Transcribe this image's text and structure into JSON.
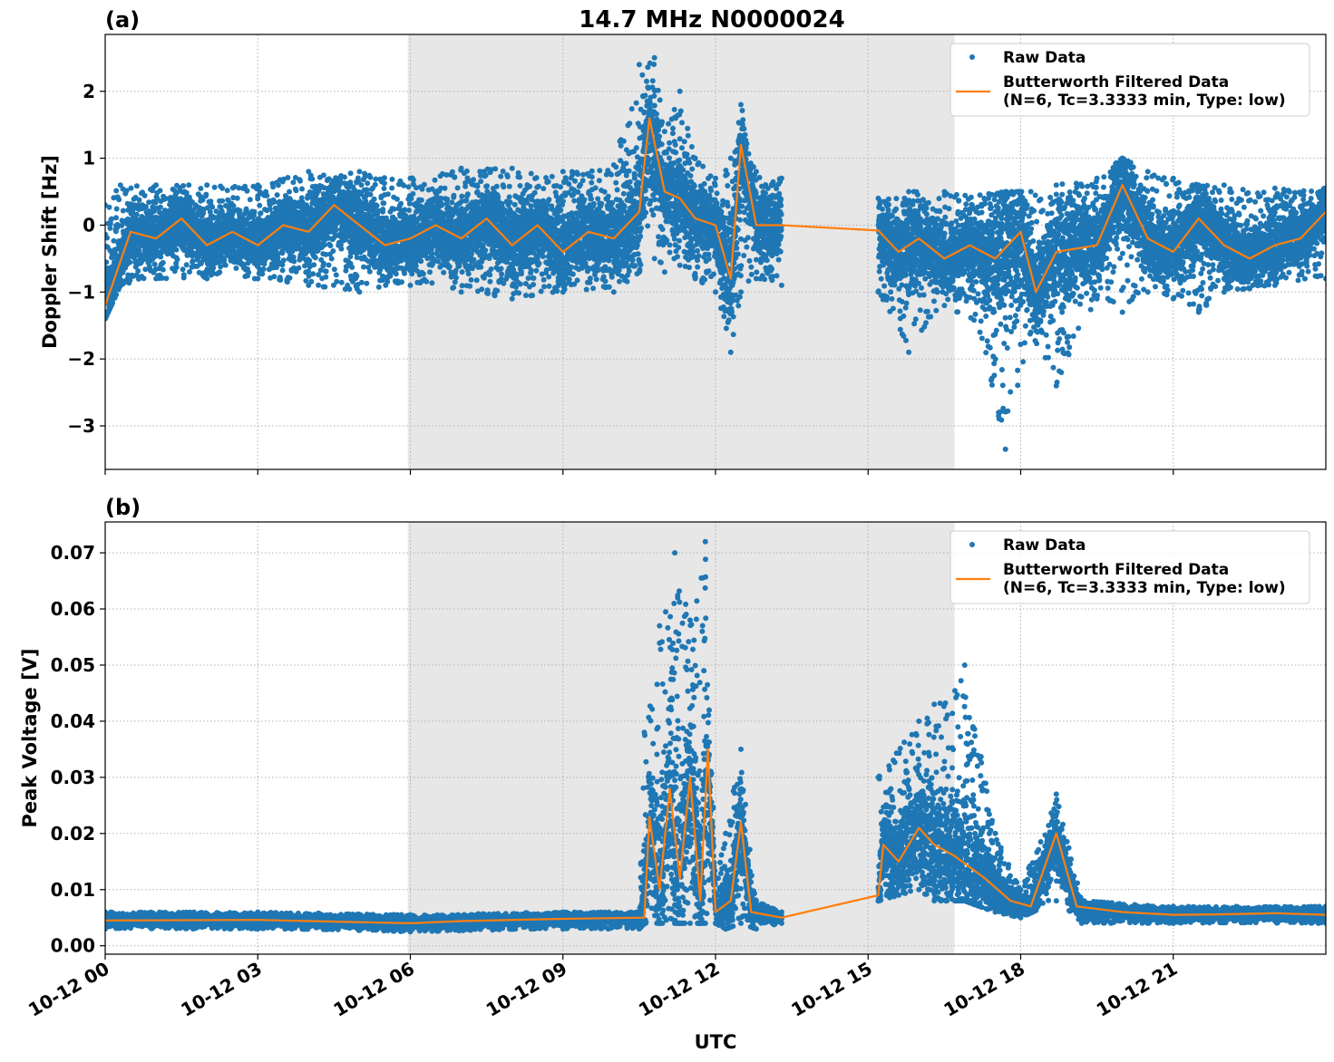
{
  "figure_title": "14.7 MHz N0000024",
  "colors": {
    "raw": "#1f77b4",
    "filtered": "#ff7f0e",
    "shade": "#e7e7e7"
  },
  "chart_data": [
    {
      "type": "scatter",
      "panel_label": "(a)",
      "ylabel": "Doppler Shift [Hz]",
      "xlabel": "",
      "x_unit": "hours UTC on 10-12",
      "xlim": [
        0,
        24
      ],
      "ylim": [
        -3.65,
        2.85
      ],
      "yticks": [
        -3,
        -2,
        -1,
        0,
        1,
        2
      ],
      "ytick_labels": [
        "−3",
        "−2",
        "−1",
        "0",
        "1",
        "2"
      ],
      "xticks": [
        0,
        3,
        6,
        9,
        12,
        15,
        18,
        21
      ],
      "grid": true,
      "shaded_span": [
        5.95,
        16.7
      ],
      "data_gap": [
        13.3,
        15.2
      ],
      "legend": {
        "placement": "top-right",
        "entries": [
          {
            "marker": "dot",
            "label": "Raw Data"
          },
          {
            "marker": "line",
            "label": "Butterworth Filtered Data",
            "label2": "(N=6, Tc=3.3333 min, Type: low)"
          }
        ]
      },
      "series": [
        {
          "name": "Raw Data",
          "style": "dots",
          "envelope": [
            [
              0,
              -1.4,
              0.3
            ],
            [
              0.3,
              -0.9,
              0.6
            ],
            [
              1.0,
              -0.8,
              0.6
            ],
            [
              2.0,
              -0.8,
              0.6
            ],
            [
              3.0,
              -0.8,
              0.6
            ],
            [
              4.0,
              -0.9,
              0.8
            ],
            [
              5.0,
              -1.0,
              0.8
            ],
            [
              6.0,
              -0.9,
              0.7
            ],
            [
              7.0,
              -1.0,
              0.85
            ],
            [
              8.0,
              -1.1,
              0.85
            ],
            [
              9.0,
              -1.0,
              0.8
            ],
            [
              10.0,
              -1.0,
              0.9
            ],
            [
              10.5,
              -0.7,
              2.4
            ],
            [
              10.8,
              -0.5,
              2.5
            ],
            [
              11.0,
              -0.7,
              1.4
            ],
            [
              11.3,
              -0.6,
              2.0
            ],
            [
              11.6,
              -0.8,
              1.0
            ],
            [
              12.0,
              -1.0,
              0.7
            ],
            [
              12.3,
              -1.9,
              1.0
            ],
            [
              12.5,
              -1.0,
              1.8
            ],
            [
              12.8,
              -0.8,
              0.8
            ],
            [
              13.3,
              -0.9,
              0.7
            ],
            [
              15.2,
              -1.0,
              0.4
            ],
            [
              15.8,
              -1.9,
              0.5
            ],
            [
              16.5,
              -1.2,
              0.5
            ],
            [
              17.2,
              -1.6,
              0.45
            ],
            [
              17.7,
              -3.35,
              0.5
            ],
            [
              18.2,
              -1.6,
              0.5
            ],
            [
              18.7,
              -2.4,
              0.6
            ],
            [
              19.5,
              -1.1,
              0.7
            ],
            [
              20.0,
              -1.3,
              1.0
            ],
            [
              20.5,
              -1.0,
              0.8
            ],
            [
              21.0,
              -1.1,
              0.7
            ],
            [
              21.5,
              -1.3,
              0.6
            ],
            [
              22.0,
              -1.0,
              0.6
            ],
            [
              23.0,
              -0.9,
              0.55
            ],
            [
              24.0,
              -0.8,
              0.55
            ]
          ]
        },
        {
          "name": "Butterworth Filtered Data",
          "style": "line",
          "points": [
            [
              0,
              -1.2
            ],
            [
              0.5,
              -0.1
            ],
            [
              1.0,
              -0.2
            ],
            [
              1.5,
              0.1
            ],
            [
              2.0,
              -0.3
            ],
            [
              2.5,
              -0.1
            ],
            [
              3.0,
              -0.3
            ],
            [
              3.5,
              0.0
            ],
            [
              4.0,
              -0.1
            ],
            [
              4.5,
              0.3
            ],
            [
              5.0,
              0.0
            ],
            [
              5.5,
              -0.3
            ],
            [
              6.0,
              -0.2
            ],
            [
              6.5,
              0.0
            ],
            [
              7.0,
              -0.2
            ],
            [
              7.5,
              0.1
            ],
            [
              8.0,
              -0.3
            ],
            [
              8.5,
              0.0
            ],
            [
              9.0,
              -0.4
            ],
            [
              9.5,
              -0.1
            ],
            [
              10.0,
              -0.2
            ],
            [
              10.5,
              0.2
            ],
            [
              10.7,
              1.6
            ],
            [
              11.0,
              0.5
            ],
            [
              11.3,
              0.4
            ],
            [
              11.6,
              0.1
            ],
            [
              12.0,
              0.0
            ],
            [
              12.3,
              -0.8
            ],
            [
              12.5,
              1.2
            ],
            [
              12.8,
              0.0
            ],
            [
              13.3,
              0.0
            ],
            [
              15.2,
              -0.08
            ],
            [
              15.6,
              -0.4
            ],
            [
              16.0,
              -0.2
            ],
            [
              16.5,
              -0.5
            ],
            [
              17.0,
              -0.3
            ],
            [
              17.5,
              -0.5
            ],
            [
              18.0,
              -0.1
            ],
            [
              18.3,
              -1.0
            ],
            [
              18.7,
              -0.4
            ],
            [
              19.5,
              -0.3
            ],
            [
              20.0,
              0.6
            ],
            [
              20.5,
              -0.2
            ],
            [
              21.0,
              -0.4
            ],
            [
              21.5,
              0.1
            ],
            [
              22.0,
              -0.3
            ],
            [
              22.5,
              -0.5
            ],
            [
              23.0,
              -0.3
            ],
            [
              23.5,
              -0.2
            ],
            [
              24.0,
              0.2
            ]
          ]
        }
      ]
    },
    {
      "type": "scatter",
      "panel_label": "(b)",
      "ylabel": "Peak Voltage [V]",
      "xlabel": "UTC",
      "x_unit": "hours UTC on 10-12",
      "xlim": [
        0,
        24
      ],
      "ylim": [
        -0.0015,
        0.0755
      ],
      "yticks": [
        0.0,
        0.01,
        0.02,
        0.03,
        0.04,
        0.05,
        0.06,
        0.07
      ],
      "ytick_labels": [
        "0.00",
        "0.01",
        "0.02",
        "0.03",
        "0.04",
        "0.05",
        "0.06",
        "0.07"
      ],
      "xticks": [
        0,
        3,
        6,
        9,
        12,
        15,
        18,
        21
      ],
      "xtick_labels": [
        "10-12 00",
        "10-12 03",
        "10-12 06",
        "10-12 09",
        "10-12 12",
        "10-12 15",
        "10-12 18",
        "10-12 21"
      ],
      "grid": true,
      "shaded_span": [
        5.95,
        16.7
      ],
      "data_gap": [
        13.3,
        15.2
      ],
      "legend": {
        "placement": "top-right",
        "entries": [
          {
            "marker": "dot",
            "label": "Raw Data"
          },
          {
            "marker": "line",
            "label": "Butterworth Filtered Data",
            "label2": "(N=6, Tc=3.3333 min, Type: low)"
          }
        ]
      },
      "series": [
        {
          "name": "Raw Data",
          "style": "dots",
          "envelope": [
            [
              0,
              0.003,
              0.006
            ],
            [
              3,
              0.003,
              0.006
            ],
            [
              6,
              0.0025,
              0.0055
            ],
            [
              9,
              0.003,
              0.006
            ],
            [
              10.5,
              0.003,
              0.006
            ],
            [
              10.6,
              0.004,
              0.038
            ],
            [
              10.9,
              0.004,
              0.057
            ],
            [
              11.2,
              0.004,
              0.07
            ],
            [
              11.5,
              0.004,
              0.058
            ],
            [
              11.8,
              0.004,
              0.072
            ],
            [
              12.0,
              0.004,
              0.012
            ],
            [
              12.2,
              0.003,
              0.02
            ],
            [
              12.5,
              0.004,
              0.035
            ],
            [
              12.8,
              0.003,
              0.008
            ],
            [
              13.3,
              0.004,
              0.006
            ],
            [
              15.2,
              0.008,
              0.03
            ],
            [
              16.0,
              0.01,
              0.04
            ],
            [
              16.3,
              0.008,
              0.043
            ],
            [
              16.9,
              0.008,
              0.05
            ],
            [
              17.5,
              0.006,
              0.02
            ],
            [
              18.0,
              0.005,
              0.01
            ],
            [
              18.7,
              0.008,
              0.027
            ],
            [
              19.2,
              0.004,
              0.008
            ],
            [
              21.0,
              0.004,
              0.007
            ],
            [
              24.0,
              0.004,
              0.007
            ]
          ]
        },
        {
          "name": "Butterworth Filtered Data",
          "style": "line",
          "points": [
            [
              0,
              0.0045
            ],
            [
              3,
              0.0046
            ],
            [
              5,
              0.0042
            ],
            [
              6,
              0.004
            ],
            [
              7,
              0.0044
            ],
            [
              9,
              0.0048
            ],
            [
              10.6,
              0.005
            ],
            [
              10.7,
              0.023
            ],
            [
              10.9,
              0.01
            ],
            [
              11.1,
              0.028
            ],
            [
              11.3,
              0.012
            ],
            [
              11.5,
              0.03
            ],
            [
              11.7,
              0.008
            ],
            [
              11.85,
              0.035
            ],
            [
              12.0,
              0.006
            ],
            [
              12.3,
              0.008
            ],
            [
              12.5,
              0.022
            ],
            [
              12.7,
              0.006
            ],
            [
              13.3,
              0.005
            ],
            [
              15.2,
              0.009
            ],
            [
              15.3,
              0.018
            ],
            [
              15.6,
              0.015
            ],
            [
              16.0,
              0.021
            ],
            [
              16.3,
              0.018
            ],
            [
              16.7,
              0.016
            ],
            [
              17.3,
              0.012
            ],
            [
              17.8,
              0.008
            ],
            [
              18.2,
              0.007
            ],
            [
              18.7,
              0.02
            ],
            [
              19.1,
              0.007
            ],
            [
              20.0,
              0.006
            ],
            [
              21.0,
              0.0055
            ],
            [
              22.0,
              0.0056
            ],
            [
              23.0,
              0.0058
            ],
            [
              24.0,
              0.0055
            ]
          ]
        }
      ]
    }
  ]
}
